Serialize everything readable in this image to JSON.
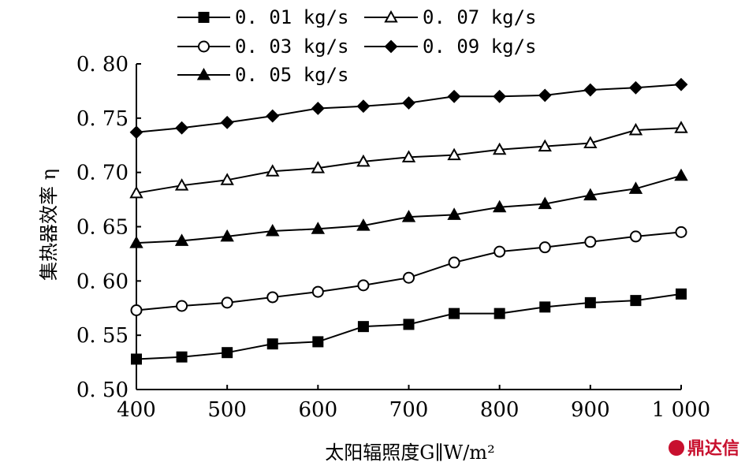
{
  "chart_data": {
    "type": "line",
    "x": [
      400,
      450,
      500,
      550,
      600,
      650,
      700,
      750,
      800,
      850,
      900,
      950,
      1000
    ],
    "x_tick_values": [
      400,
      500,
      600,
      700,
      800,
      900,
      1000
    ],
    "x_tick_labels": [
      "400",
      "500",
      "600",
      "700",
      "800",
      "900",
      "1 000"
    ],
    "y_tick_values": [
      0.5,
      0.55,
      0.6,
      0.65,
      0.7,
      0.75,
      0.8
    ],
    "y_tick_labels": [
      "0. 50",
      "0. 55",
      "0. 60",
      "0. 65",
      "0. 70",
      "0. 75",
      "0. 80"
    ],
    "xlim": [
      400,
      1000
    ],
    "ylim": [
      0.5,
      0.8
    ],
    "xlabel": "太阳辐照度G∥W/m²",
    "ylabel": "集热器效率 η",
    "grid": false,
    "legend_position": "top",
    "series": [
      {
        "name": "0. 01  kg/s",
        "marker": "square-filled",
        "values": [
          0.528,
          0.53,
          0.534,
          0.542,
          0.544,
          0.558,
          0.56,
          0.57,
          0.57,
          0.576,
          0.58,
          0.582,
          0.588
        ]
      },
      {
        "name": "0. 03  kg/s",
        "marker": "circle-open",
        "values": [
          0.573,
          0.577,
          0.58,
          0.585,
          0.59,
          0.596,
          0.603,
          0.617,
          0.627,
          0.631,
          0.636,
          0.641,
          0.645
        ]
      },
      {
        "name": "0. 05  kg/s",
        "marker": "triangle-filled",
        "values": [
          0.635,
          0.637,
          0.641,
          0.646,
          0.648,
          0.651,
          0.659,
          0.661,
          0.668,
          0.671,
          0.679,
          0.685,
          0.697
        ]
      },
      {
        "name": "0. 07  kg/s",
        "marker": "triangle-open",
        "values": [
          0.681,
          0.688,
          0.693,
          0.701,
          0.704,
          0.71,
          0.714,
          0.716,
          0.721,
          0.724,
          0.727,
          0.739,
          0.741
        ]
      },
      {
        "name": "0. 09  kg/s",
        "marker": "diamond-filled",
        "values": [
          0.737,
          0.741,
          0.746,
          0.752,
          0.759,
          0.761,
          0.764,
          0.77,
          0.77,
          0.771,
          0.776,
          0.778,
          0.781
        ]
      }
    ]
  },
  "watermark": {
    "text": "鼎达信"
  }
}
